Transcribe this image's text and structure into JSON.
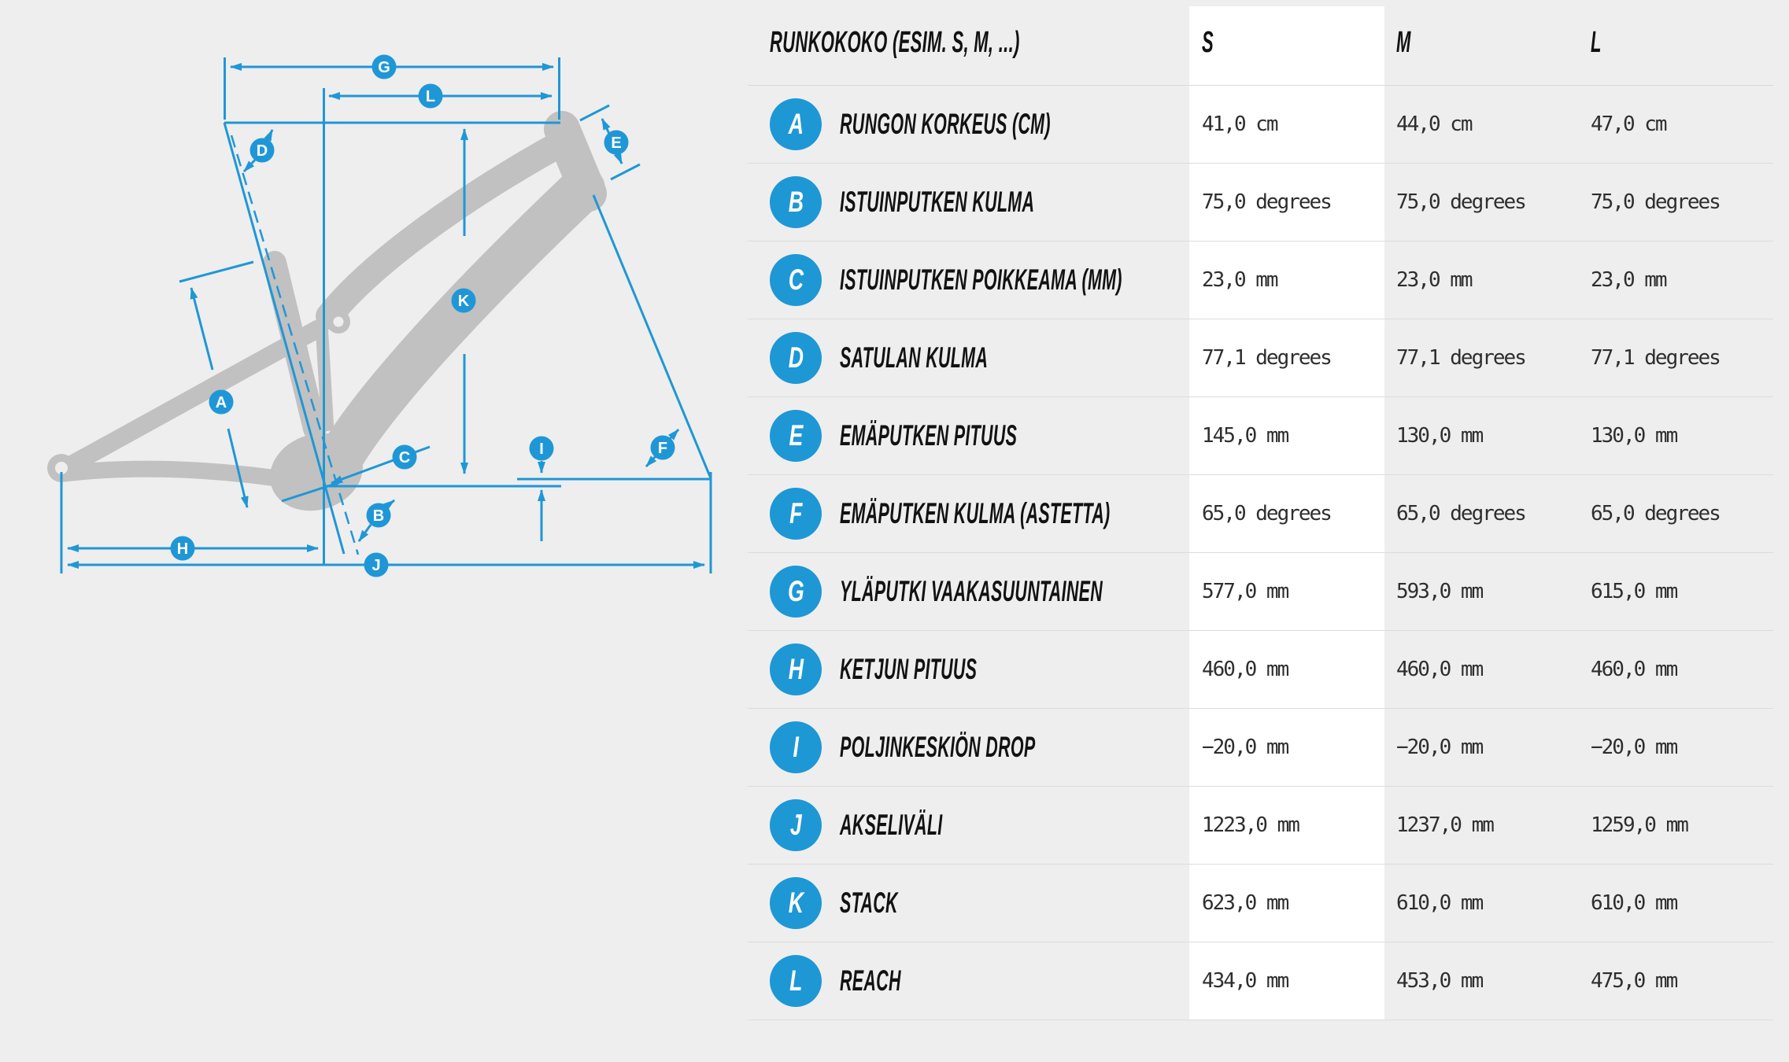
{
  "header": {
    "label_col": "RUNKOKOKO (ESIM. S, M, ...)",
    "size_cols": [
      "S",
      "M",
      "L"
    ]
  },
  "rows": [
    {
      "letter": "A",
      "label": "RUNGON KORKEUS (CM)",
      "values": [
        "41,0 cm",
        "44,0 cm",
        "47,0 cm"
      ]
    },
    {
      "letter": "B",
      "label": "ISTUINPUTKEN KULMA",
      "values": [
        "75,0 degrees",
        "75,0 degrees",
        "75,0 degrees"
      ]
    },
    {
      "letter": "C",
      "label": "ISTUINPUTKEN POIKKEAMA (MM)",
      "values": [
        "23,0 mm",
        "23,0 mm",
        "23,0 mm"
      ]
    },
    {
      "letter": "D",
      "label": "SATULAN KULMA",
      "values": [
        "77,1 degrees",
        "77,1 degrees",
        "77,1 degrees"
      ]
    },
    {
      "letter": "E",
      "label": "EMÄPUTKEN PITUUS",
      "values": [
        "145,0 mm",
        "130,0 mm",
        "130,0 mm"
      ]
    },
    {
      "letter": "F",
      "label": "EMÄPUTKEN KULMA (ASTETTA)",
      "values": [
        "65,0 degrees",
        "65,0 degrees",
        "65,0 degrees"
      ]
    },
    {
      "letter": "G",
      "label": "YLÄPUTKI VAAKASUUNTAINEN",
      "values": [
        "577,0 mm",
        "593,0 mm",
        "615,0 mm"
      ]
    },
    {
      "letter": "H",
      "label": "KETJUN PITUUS",
      "values": [
        "460,0 mm",
        "460,0 mm",
        "460,0 mm"
      ]
    },
    {
      "letter": "I",
      "label": "POLJINKESKIÖN DROP",
      "values": [
        "−20,0 mm",
        "−20,0 mm",
        "−20,0 mm"
      ]
    },
    {
      "letter": "J",
      "label": "AKSELIVÄLI",
      "values": [
        "1223,0 mm",
        "1237,0 mm",
        "1259,0 mm"
      ]
    },
    {
      "letter": "K",
      "label": "STACK",
      "values": [
        "623,0 mm",
        "610,0 mm",
        "610,0 mm"
      ]
    },
    {
      "letter": "L",
      "label": "REACH",
      "values": [
        "434,0 mm",
        "453,0 mm",
        "475,0 mm"
      ]
    }
  ],
  "colors": {
    "accent_blue": "#1f97d6",
    "frame_gray": "#c1c1c1",
    "background": "#eeeeee",
    "highlight_column": "#ffffff",
    "row_line": "#dcdcdc",
    "value_text": "#2e2e2e"
  }
}
